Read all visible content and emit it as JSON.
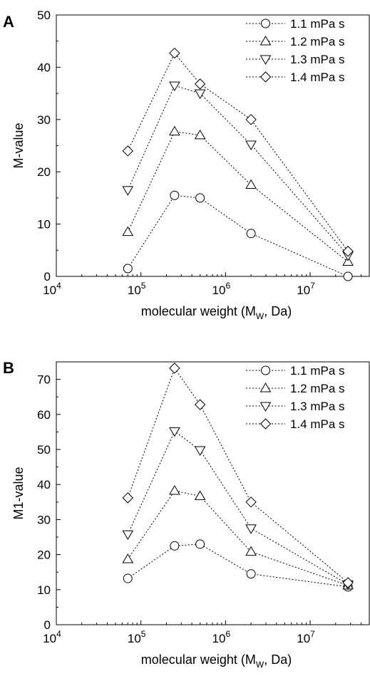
{
  "chart_data": [
    {
      "type": "line",
      "panel_label": "A",
      "xlabel": "molecular weight (M",
      "xlabel_sub": "W",
      "xlabel_tail": ", Da)",
      "ylabel": "M-value",
      "x_scale": "log",
      "xlim": [
        10000,
        50000000
      ],
      "ylim": [
        0,
        50
      ],
      "x_ticks": [
        {
          "value": 10000,
          "base": "10",
          "exp": "4"
        },
        {
          "value": 100000,
          "base": "10",
          "exp": "5"
        },
        {
          "value": 1000000,
          "base": "10",
          "exp": "6"
        },
        {
          "value": 10000000,
          "base": "10",
          "exp": "7"
        }
      ],
      "y_ticks": [
        0,
        10,
        20,
        30,
        40,
        50
      ],
      "grid": false,
      "legend_position": "top-right",
      "x": [
        70000,
        250000,
        500000,
        2000000,
        28000000
      ],
      "series": [
        {
          "name": "1.1 mPa s",
          "marker": "circle",
          "values": [
            1.5,
            15.5,
            15.0,
            8.2,
            0.0
          ]
        },
        {
          "name": "1.2 mPa s",
          "marker": "triangle-up",
          "values": [
            8.5,
            27.7,
            27.0,
            17.5,
            2.8
          ]
        },
        {
          "name": "1.3 mPa s",
          "marker": "triangle-down",
          "values": [
            16.5,
            36.5,
            35.0,
            25.2,
            4.0
          ]
        },
        {
          "name": "1.4 mPa s",
          "marker": "diamond",
          "values": [
            24.0,
            42.7,
            36.8,
            30.0,
            4.8
          ]
        }
      ]
    },
    {
      "type": "line",
      "panel_label": "B",
      "xlabel": "molecular weight (M",
      "xlabel_sub": "W",
      "xlabel_tail": ", Da)",
      "ylabel": "M1-value",
      "x_scale": "log",
      "xlim": [
        10000,
        50000000
      ],
      "ylim": [
        0,
        75
      ],
      "x_ticks": [
        {
          "value": 10000,
          "base": "10",
          "exp": "4"
        },
        {
          "value": 100000,
          "base": "10",
          "exp": "5"
        },
        {
          "value": 1000000,
          "base": "10",
          "exp": "6"
        },
        {
          "value": 10000000,
          "base": "10",
          "exp": "7"
        }
      ],
      "y_ticks": [
        0,
        10,
        20,
        30,
        40,
        50,
        60,
        70
      ],
      "grid": false,
      "legend_position": "top-right",
      "x": [
        70000,
        250000,
        500000,
        2000000,
        28000000
      ],
      "series": [
        {
          "name": "1.1 mPa s",
          "marker": "circle",
          "values": [
            13.2,
            22.5,
            23.0,
            14.5,
            10.8
          ]
        },
        {
          "name": "1.2 mPa s",
          "marker": "triangle-up",
          "values": [
            18.7,
            38.2,
            36.7,
            20.8,
            11.2
          ]
        },
        {
          "name": "1.3 mPa s",
          "marker": "triangle-down",
          "values": [
            25.8,
            55.2,
            49.8,
            27.5,
            11.5
          ]
        },
        {
          "name": "1.4 mPa s",
          "marker": "diamond",
          "values": [
            36.2,
            73.2,
            62.8,
            35.0,
            12.0
          ]
        }
      ]
    }
  ]
}
